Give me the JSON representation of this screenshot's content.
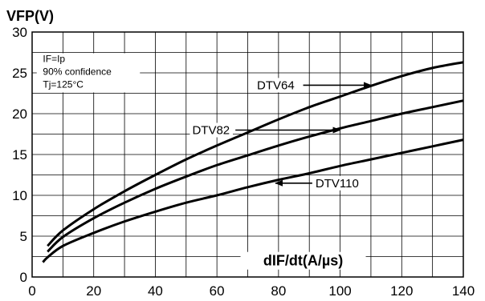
{
  "chart_data": {
    "type": "line",
    "title": "",
    "ylabel": "VFP(V)",
    "xlabel": "dIF/dt(A/µs)",
    "xlim": [
      0,
      140
    ],
    "ylim": [
      0,
      30
    ],
    "xticks": [
      0,
      20,
      40,
      60,
      80,
      100,
      120,
      140
    ],
    "yticks": [
      0,
      5,
      10,
      15,
      20,
      25,
      30
    ],
    "x_minor_step": 10,
    "y_minor_step": 2.5,
    "grid": true,
    "conditions": [
      "IF=Ip",
      "90% confidence",
      "Tj=125°C"
    ],
    "series": [
      {
        "name": "DTV64",
        "x": [
          5,
          10,
          20,
          30,
          40,
          50,
          60,
          70,
          80,
          90,
          100,
          110,
          120,
          130,
          140
        ],
        "y": [
          3.8,
          5.7,
          8.3,
          10.5,
          12.5,
          14.4,
          16.1,
          17.7,
          19.3,
          20.8,
          22.1,
          23.4,
          24.6,
          25.6,
          26.3
        ]
      },
      {
        "name": "DTV82",
        "x": [
          5,
          10,
          20,
          30,
          40,
          50,
          60,
          70,
          80,
          90,
          100,
          110,
          120,
          130,
          140
        ],
        "y": [
          3.1,
          4.9,
          7.2,
          9.1,
          10.8,
          12.3,
          13.7,
          14.9,
          16.1,
          17.2,
          18.2,
          19.1,
          20.0,
          20.8,
          21.6
        ]
      },
      {
        "name": "DTV110",
        "x": [
          3.5,
          5,
          10,
          20,
          30,
          40,
          50,
          60,
          70,
          80,
          90,
          100,
          110,
          120,
          130,
          140
        ],
        "y": [
          1.8,
          2.4,
          3.8,
          5.4,
          6.8,
          8.0,
          9.1,
          10.0,
          11.0,
          11.9,
          12.7,
          13.6,
          14.4,
          15.2,
          16.0,
          16.8
        ]
      }
    ],
    "annotations": [
      {
        "series": "DTV64",
        "text": "DTV64",
        "arrow_to": [
          110,
          23.4
        ]
      },
      {
        "series": "DTV82",
        "text": "DTV82",
        "arrow_to": [
          100,
          18.2
        ]
      },
      {
        "series": "DTV110",
        "text": "DTV110",
        "arrow_to": [
          79,
          12.0
        ]
      }
    ]
  }
}
